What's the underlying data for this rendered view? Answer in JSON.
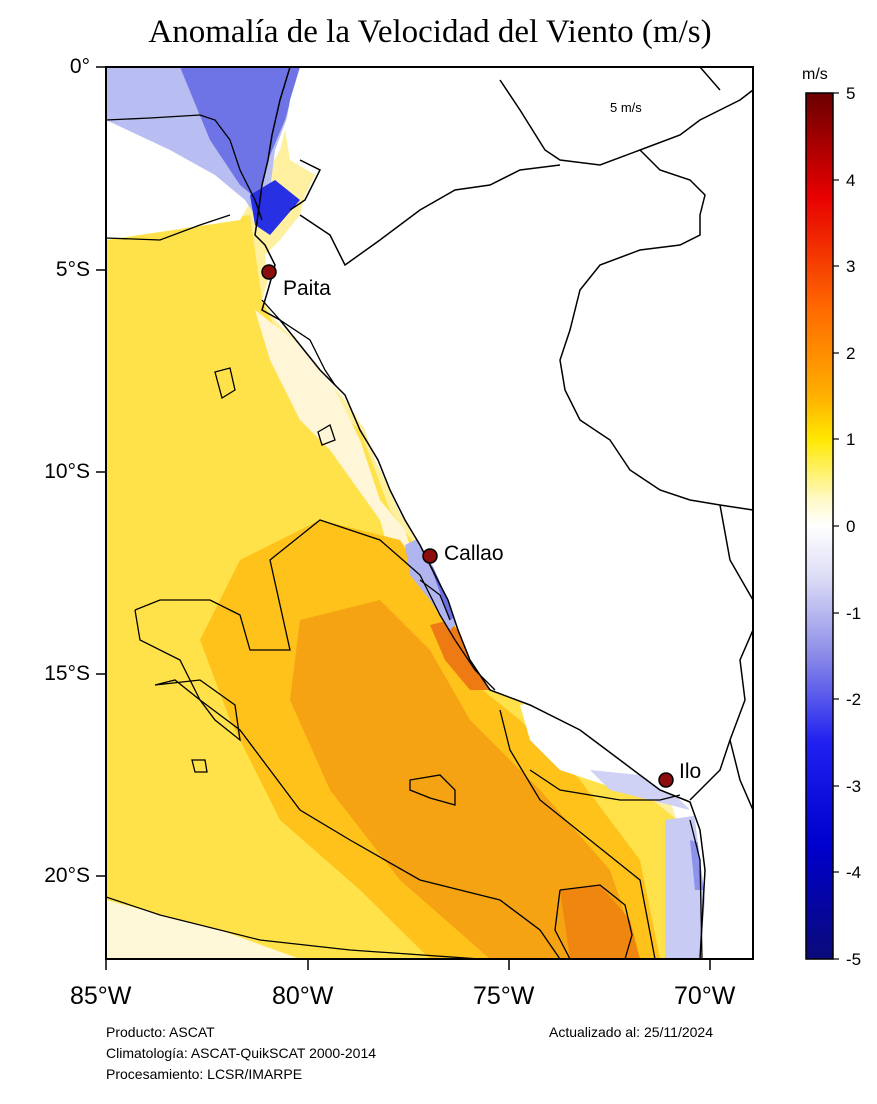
{
  "title": "Anomalía de la Velocidad del Viento (m/s)",
  "lat_labels": [
    "0°",
    "5°S",
    "10°S",
    "15°S",
    "20°S"
  ],
  "lon_labels": [
    "85°W",
    "80°W",
    "75°W",
    "70°W"
  ],
  "vector_scale_label": "5 m/s",
  "colorbar": {
    "unit": "m/s",
    "ticks": [
      "5",
      "4",
      "3",
      "2",
      "1",
      "0",
      "-1",
      "-2",
      "-3",
      "-4",
      "-5"
    ],
    "colors": [
      "#7a0000",
      "#ff0000",
      "#ff8c00",
      "#ffe600",
      "#ffffff",
      "#b9b9f2",
      "#0000dd",
      "#0b0b7a"
    ]
  },
  "cities": [
    {
      "name": "Paita"
    },
    {
      "name": "Callao"
    },
    {
      "name": "Ilo"
    }
  ],
  "footer": {
    "product": "Producto: ASCAT",
    "climatology": "Climatología: ASCAT-QuikSCAT 2000-2014",
    "processing": "Procesamiento: LCSR/IMARPE",
    "updated": "Actualizado al: 25/11/2024"
  }
}
